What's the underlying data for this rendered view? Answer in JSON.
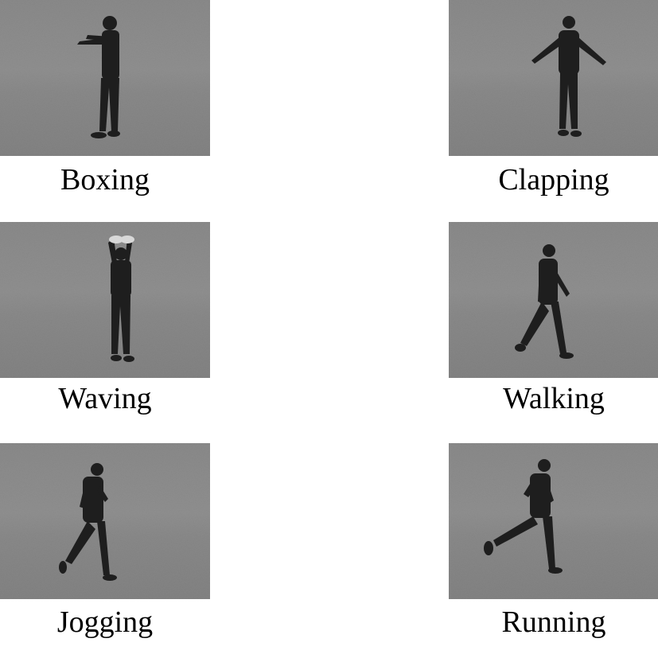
{
  "actions": [
    {
      "id": "boxing",
      "label": "Boxing"
    },
    {
      "id": "clapping",
      "label": "Clapping"
    },
    {
      "id": "waving",
      "label": "Waving"
    },
    {
      "id": "walking",
      "label": "Walking"
    },
    {
      "id": "jogging",
      "label": "Jogging"
    },
    {
      "id": "running",
      "label": "Running"
    }
  ]
}
